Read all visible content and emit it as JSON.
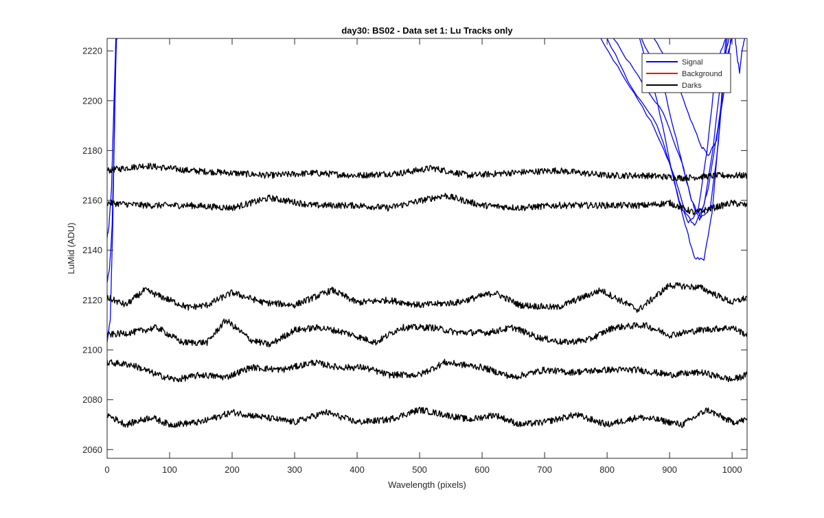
{
  "chart_data": {
    "type": "line",
    "title": "day30: BS02 - Data set 1: Lu Tracks only",
    "xlabel": "Wavelength (pixels)",
    "ylabel": "LuMid (ADU)",
    "xlim": [
      0,
      1024
    ],
    "ylim": [
      2056.5,
      2225
    ],
    "xticks": [
      "0",
      "100",
      "200",
      "300",
      "400",
      "500",
      "600",
      "700",
      "800",
      "900",
      "1000"
    ],
    "yticks": [
      "2060",
      "2080",
      "2100",
      "2120",
      "2140",
      "2160",
      "2180",
      "2200",
      "2220"
    ],
    "legend": {
      "placement": "top-right",
      "entries": [
        {
          "label": "Signal",
          "color": "#0000ff"
        },
        {
          "label": "Background",
          "color": "#ff0000"
        },
        {
          "label": "Darks",
          "color": "#000000"
        }
      ]
    },
    "series": [
      {
        "name": "Signal",
        "color": "#0000ff",
        "lines": [
          {
            "x": [
              0,
              5,
              9,
              12,
              15,
              16
            ],
            "y": [
              2103,
              2112,
              2150,
              2195,
              2225,
              2225
            ]
          },
          {
            "x": [
              0,
              4,
              8,
              12,
              14
            ],
            "y": [
              2127,
              2133,
              2150,
              2190,
              2225
            ]
          },
          {
            "x": [
              0,
              3,
              7,
              11,
              14
            ],
            "y": [
              2145,
              2150,
              2165,
              2200,
              2225
            ]
          },
          {
            "x": [
              790,
              830,
              870,
              900,
              915,
              930,
              945,
              960,
              975,
              990
            ],
            "y": [
              2225,
              2208,
              2192,
              2175,
              2160,
              2151,
              2155,
              2180,
              2215,
              2225
            ]
          },
          {
            "x": [
              800,
              840,
              880,
              910,
              925,
              940,
              955,
              970,
              985,
              995
            ],
            "y": [
              2225,
              2205,
              2190,
              2168,
              2155,
              2150,
              2158,
              2182,
              2215,
              2225
            ]
          },
          {
            "x": [
              810,
              850,
              890,
              920,
              935,
              948,
              962,
              978,
              992,
              1000
            ],
            "y": [
              2225,
              2210,
              2195,
              2175,
              2160,
              2152,
              2165,
              2190,
              2218,
              2225
            ]
          },
          {
            "x": [
              852,
              880,
              905,
              925,
              940,
              955,
              968,
              980,
              990
            ],
            "y": [
              2225,
              2200,
              2170,
              2150,
              2137,
              2136,
              2155,
              2190,
              2225
            ]
          },
          {
            "x": [
              855,
              890,
              915,
              935,
              950,
              965,
              978,
              992
            ],
            "y": [
              2225,
              2206,
              2180,
              2160,
              2153,
              2157,
              2183,
              2225
            ]
          },
          {
            "x": [
              875,
              905,
              930,
              950,
              962,
              975,
              988,
              998
            ],
            "y": [
              2225,
              2212,
              2195,
              2182,
              2178,
              2184,
              2205,
              2225
            ]
          },
          {
            "x": [
              1005,
              1008,
              1012,
              1016,
              1020
            ],
            "y": [
              2225,
              2218,
              2211,
              2220,
              2225
            ]
          }
        ]
      },
      {
        "name": "Darks",
        "color": "#000000",
        "lines": [
          {
            "x": [
              0,
              60,
              130,
              200,
              260,
              330,
              400,
              470,
              520,
              580,
              640,
              720,
              800,
              860,
              920,
              980,
              1024
            ],
            "y": [
              2172,
              2174,
              2172,
              2171,
              2170,
              2171,
              2170,
              2171,
              2173,
              2170,
              2171,
              2172,
              2170,
              2170,
              2169,
              2170,
              2170
            ]
          },
          {
            "x": [
              0,
              60,
              130,
              200,
              260,
              330,
              400,
              450,
              540,
              600,
              660,
              720,
              800,
              860,
              900,
              940,
              1000,
              1024
            ],
            "y": [
              2159,
              2158,
              2158,
              2157,
              2161,
              2158,
              2158,
              2157,
              2162,
              2158,
              2157,
              2158,
              2158,
              2158,
              2159,
              2155,
              2159,
              2158
            ]
          },
          {
            "x": [
              0,
              30,
              60,
              100,
              130,
              160,
              200,
              250,
              300,
              360,
              400,
              450,
              500,
              560,
              620,
              660,
              720,
              790,
              850,
              900,
              950,
              1000,
              1024
            ],
            "y": [
              2121,
              2118,
              2124,
              2120,
              2117,
              2118,
              2123,
              2119,
              2118,
              2124,
              2119,
              2120,
              2118,
              2119,
              2123,
              2118,
              2117,
              2124,
              2116,
              2126,
              2125,
              2119,
              2121
            ]
          },
          {
            "x": [
              0,
              40,
              80,
              120,
              160,
              190,
              230,
              260,
              300,
              340,
              380,
              430,
              470,
              520,
              560,
              610,
              650,
              690,
              730,
              770,
              810,
              860,
              900,
              950,
              1000,
              1024
            ],
            "y": [
              2106,
              2107,
              2109,
              2103,
              2103,
              2112,
              2104,
              2102,
              2108,
              2109,
              2107,
              2103,
              2109,
              2109,
              2107,
              2107,
              2109,
              2105,
              2103,
              2104,
              2109,
              2110,
              2106,
              2108,
              2109,
              2106
            ]
          },
          {
            "x": [
              0,
              40,
              80,
              110,
              150,
              190,
              230,
              280,
              330,
              370,
              410,
              450,
              500,
              540,
              600,
              650,
              700,
              740,
              800,
              850,
              900,
              950,
              1000,
              1024
            ],
            "y": [
              2095,
              2094,
              2090,
              2088,
              2090,
              2089,
              2093,
              2092,
              2095,
              2093,
              2093,
              2090,
              2090,
              2095,
              2093,
              2089,
              2092,
              2091,
              2092,
              2092,
              2090,
              2091,
              2088,
              2090
            ]
          },
          {
            "x": [
              0,
              30,
              70,
              100,
              150,
              200,
              250,
              300,
              350,
              400,
              450,
              500,
              540,
              580,
              620,
              660,
              700,
              750,
              800,
              850,
              880,
              920,
              960,
              1000,
              1024
            ],
            "y": [
              2074,
              2070,
              2073,
              2070,
              2071,
              2075,
              2073,
              2071,
              2075,
              2071,
              2072,
              2076,
              2074,
              2072,
              2074,
              2070,
              2071,
              2074,
              2070,
              2073,
              2072,
              2070,
              2076,
              2071,
              2072
            ]
          }
        ]
      }
    ]
  }
}
